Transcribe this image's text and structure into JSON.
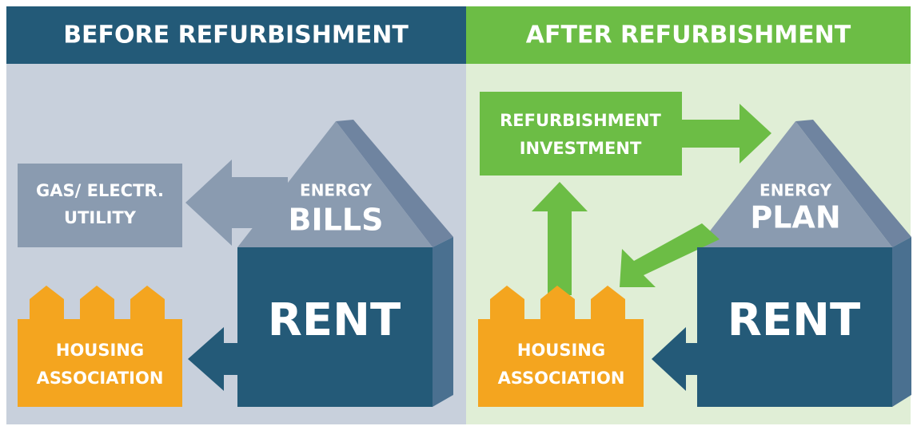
{
  "before": {
    "header": "BEFORE REFURBISHMENT",
    "utility": [
      "GAS/ ELECTR.",
      "UTILITY"
    ],
    "roof": [
      "ENERGY",
      "BILLS"
    ],
    "house": "RENT",
    "association": [
      "HOUSING",
      "ASSOCIATION"
    ]
  },
  "after": {
    "header": "AFTER REFURBISHMENT",
    "investment": [
      "REFURBISHMENT",
      "INVESTMENT"
    ],
    "roof": [
      "ENERGY",
      "PLAN"
    ],
    "house": "RENT",
    "association": [
      "HOUSING",
      "ASSOCIATION"
    ]
  }
}
